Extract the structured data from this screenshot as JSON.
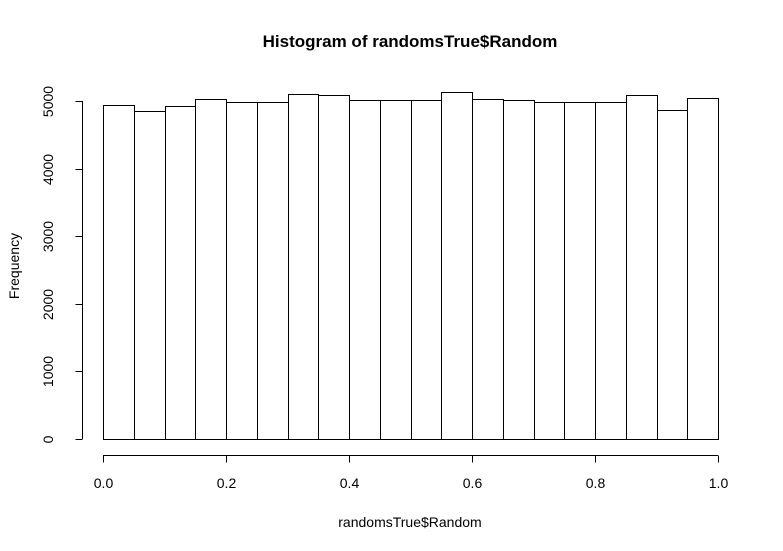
{
  "chart_data": {
    "type": "bar",
    "title": "Histogram of randomsTrue$Random",
    "xlabel": "randomsTrue$Random",
    "ylabel": "Frequency",
    "bin_edges": [
      0.0,
      0.05,
      0.1,
      0.15,
      0.2,
      0.25,
      0.3,
      0.35,
      0.4,
      0.45,
      0.5,
      0.55,
      0.6,
      0.65,
      0.7,
      0.75,
      0.8,
      0.85,
      0.9,
      0.95,
      1.0
    ],
    "values": [
      4940,
      4850,
      4930,
      5030,
      4990,
      4990,
      5110,
      5090,
      5010,
      5020,
      5020,
      5130,
      5030,
      5020,
      4990,
      4980,
      4990,
      5090,
      4870,
      5050
    ],
    "xlim": [
      0,
      1
    ],
    "ylim": [
      0,
      5000
    ],
    "x_ticks": [
      0.0,
      0.2,
      0.4,
      0.6,
      0.8,
      1.0
    ],
    "x_tick_labels": [
      "0.0",
      "0.2",
      "0.4",
      "0.6",
      "0.8",
      "1.0"
    ],
    "y_ticks": [
      0,
      1000,
      2000,
      3000,
      4000,
      5000
    ],
    "y_tick_labels": [
      "0",
      "1000",
      "2000",
      "3000",
      "4000",
      "5000"
    ],
    "grid": false,
    "colors": {
      "bar_fill": "#ffffff",
      "bar_stroke": "#000000"
    }
  }
}
